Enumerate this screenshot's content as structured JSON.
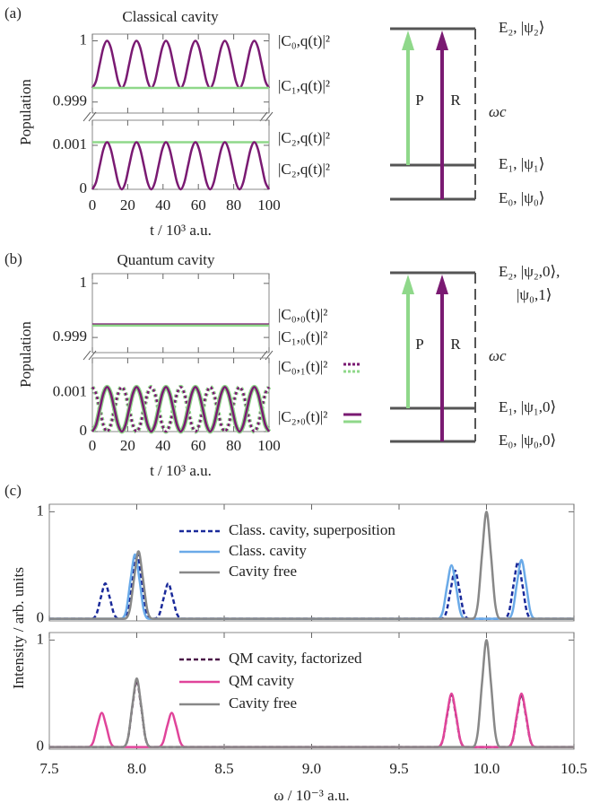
{
  "chart_data": [
    {
      "type": "line",
      "label": "(a)",
      "title": "Classical cavity",
      "x_label": "t / 10³ a.u.",
      "y_label": "Population",
      "x": [
        0,
        2.08,
        4.17,
        6.25,
        8.33,
        10.42,
        12.5,
        14.58,
        16.67,
        18.75,
        20.83,
        22.92,
        25,
        27.08,
        29.17,
        31.25,
        33.33,
        35.42,
        37.5,
        39.58,
        41.67,
        43.75,
        45.83,
        47.92,
        50,
        52.08,
        54.17,
        56.25,
        58.33,
        60.42,
        62.5,
        64.58,
        66.67,
        68.75,
        70.83,
        72.92,
        75,
        77.08,
        79.17,
        81.25,
        83.33,
        85.42,
        87.5,
        89.58,
        91.67,
        93.75,
        95.83,
        97.92,
        100
      ],
      "xlim": [
        0,
        100
      ],
      "xticks": [
        0,
        20,
        40,
        60,
        80,
        100
      ],
      "panels": [
        {
          "ylim": [
            0.99882,
            1.00011
          ],
          "yticks": [
            0.999,
            1
          ],
          "series": [
            {
              "name": "|C₀,q(t)|²",
              "color": "#7a1a72",
              "label_color": "#7a1a72",
              "values": [
                0.99923,
                0.99934,
                0.99962,
                0.99989,
                1,
                0.99989,
                0.99962,
                0.99934,
                0.99923,
                0.99934,
                0.99962,
                0.99989,
                1,
                0.99989,
                0.99962,
                0.99934,
                0.99923,
                0.99934,
                0.99962,
                0.99989,
                1,
                0.99989,
                0.99962,
                0.99934,
                0.99923,
                0.99934,
                0.99962,
                0.99989,
                1,
                0.99989,
                0.99962,
                0.99934,
                0.99923,
                0.99934,
                0.99962,
                0.99989,
                1,
                0.99989,
                0.99962,
                0.99934,
                0.99923,
                0.99934,
                0.99962,
                0.99989,
                1,
                0.99989,
                0.99962,
                0.99934,
                0.99923
              ]
            },
            {
              "name": "|C₁,q(t)|²",
              "color": "#8fd88a",
              "label_color": "#5e9e5a",
              "x": [
                0,
                100
              ],
              "values": [
                0.99923,
                0.99923
              ]
            }
          ]
        },
        {
          "ylim": [
            0,
            0.00157
          ],
          "yticks": [
            0,
            0.001
          ],
          "series": [
            {
              "name": "|C₂,q(t)|²",
              "color": "#8fd88a",
              "label_color": "#5e9e5a",
              "x": [
                0,
                100
              ],
              "values": [
                0.00107,
                0.00107
              ]
            },
            {
              "name": "|C₂,q(t)|²",
              "color": "#7a1a72",
              "label_color": "#7a1a72",
              "values": [
                0,
                0.00016,
                0.00054,
                0.00091,
                0.00107,
                0.00091,
                0.00054,
                0.00016,
                0,
                0.00016,
                0.00054,
                0.00091,
                0.00107,
                0.00091,
                0.00054,
                0.00016,
                0,
                0.00016,
                0.00054,
                0.00091,
                0.00107,
                0.00091,
                0.00054,
                0.00016,
                0,
                0.00016,
                0.00054,
                0.00091,
                0.00107,
                0.00091,
                0.00054,
                0.00016,
                0,
                0.00016,
                0.00054,
                0.00091,
                0.00107,
                0.00091,
                0.00054,
                0.00016,
                0,
                0.00016,
                0.00054,
                0.00091,
                0.00107,
                0.00091,
                0.00054,
                0.00016,
                0
              ]
            }
          ]
        }
      ]
    },
    {
      "type": "line",
      "label": "(b)",
      "title": "Quantum cavity",
      "x_label": "t / 10³ a.u.",
      "y_label": "Population",
      "x": [
        0,
        2.08,
        4.17,
        6.25,
        8.33,
        10.42,
        12.5,
        14.58,
        16.67,
        18.75,
        20.83,
        22.92,
        25,
        27.08,
        29.17,
        31.25,
        33.33,
        35.42,
        37.5,
        39.58,
        41.67,
        43.75,
        45.83,
        47.92,
        50,
        52.08,
        54.17,
        56.25,
        58.33,
        60.42,
        62.5,
        64.58,
        66.67,
        68.75,
        70.83,
        72.92,
        75,
        77.08,
        79.17,
        81.25,
        83.33,
        85.42,
        87.5,
        89.58,
        91.67,
        93.75,
        95.83,
        97.92,
        100
      ],
      "xlim": [
        0,
        100
      ],
      "xticks": [
        0,
        20,
        40,
        60,
        80,
        100
      ],
      "panels": [
        {
          "ylim": [
            0.99872,
            1.00018
          ],
          "yticks": [
            0.999,
            1
          ],
          "series": [
            {
              "name": "|C₀,₀(t)|²",
              "color": "#7a1a72",
              "label_color": "#7a1a72",
              "x": [
                0,
                100
              ],
              "values": [
                0.99924,
                0.99924
              ]
            },
            {
              "name": "|C₁,₀(t)|²",
              "color": "#8fd88a",
              "label_color": "#5e9e5a",
              "x": [
                0,
                100
              ],
              "values": [
                0.99922,
                0.99922
              ]
            }
          ]
        },
        {
          "ylim": [
            0,
            0.0019
          ],
          "yticks": [
            0,
            0.001
          ],
          "series": [
            {
              "name": "|C₀,₁(t)|²",
              "colors": [
                "#8fd88a",
                "#7a1a72"
              ],
              "dash": true,
              "values": [
                0.00115,
                0.00098,
                0.00058,
                0.00017,
                0,
                0.00017,
                0.00058,
                0.00098,
                0.00115,
                0.00098,
                0.00058,
                0.00017,
                0,
                0.00017,
                0.00058,
                0.00098,
                0.00115,
                0.00098,
                0.00058,
                0.00017,
                0,
                0.00017,
                0.00058,
                0.00098,
                0.00115,
                0.00098,
                0.00058,
                0.00017,
                0,
                0.00017,
                0.00058,
                0.00098,
                0.00115,
                0.00098,
                0.00058,
                0.00017,
                0,
                0.00017,
                0.00058,
                0.00098,
                0.00115,
                0.00098,
                0.00058,
                0.00017,
                0,
                0.00017,
                0.00058,
                0.00098,
                0.00115
              ]
            },
            {
              "name": "|C₂,₀(t)|²",
              "colors": [
                "#8fd88a",
                "#7a1a72"
              ],
              "dash": false,
              "values": [
                0,
                0.00017,
                0.00058,
                0.00098,
                0.00115,
                0.00098,
                0.00058,
                0.00017,
                0,
                0.00017,
                0.00058,
                0.00098,
                0.00115,
                0.00098,
                0.00058,
                0.00017,
                0,
                0.00017,
                0.00058,
                0.00098,
                0.00115,
                0.00098,
                0.00058,
                0.00017,
                0,
                0.00017,
                0.00058,
                0.00098,
                0.00115,
                0.00098,
                0.00058,
                0.00017,
                0,
                0.00017,
                0.00058,
                0.00098,
                0.00115,
                0.00098,
                0.00058,
                0.00017,
                0,
                0.00017,
                0.00058,
                0.00098,
                0.00115,
                0.00098,
                0.00058,
                0.00017,
                0
              ]
            }
          ]
        }
      ]
    },
    {
      "type": "line",
      "label": "(c)",
      "x_label": "ω / 10⁻³ a.u.",
      "y_label": "Intensity / arb. units",
      "xlim": [
        7.5,
        10.5
      ],
      "xticks": [
        7.5,
        {
          "value": 8,
          "label": "8.0"
        },
        8.5,
        {
          "value": 9,
          "label": "9.0"
        },
        9.5,
        {
          "value": 10,
          "label": "10.0"
        },
        10.5
      ],
      "panels": [
        {
          "ylim": [
            -0.02,
            1.07
          ],
          "yticks": [
            0,
            1
          ],
          "series": [
            {
              "name": "Class. cavity, superposition",
              "color": "#1a2a9a",
              "dash": true,
              "x": [
                7.5,
                7.74,
                7.77,
                7.795,
                7.82,
                7.845,
                7.87,
                7.9,
                7.92,
                7.95,
                7.975,
                8.0,
                8.025,
                8.05,
                8.08,
                8.1,
                8.13,
                8.155,
                8.18,
                8.205,
                8.23,
                8.26,
                9.74,
                9.77,
                9.795,
                9.82,
                9.845,
                9.87,
                9.9,
                10.1,
                10.13,
                10.155,
                10.18,
                10.205,
                10.23,
                10.26,
                10.5
              ],
              "values": [
                0,
                0,
                0.045,
                0.2,
                0.33,
                0.2,
                0.045,
                0,
                0,
                0.084,
                0.38,
                0.62,
                0.38,
                0.084,
                0,
                0,
                0.045,
                0.2,
                0.33,
                0.2,
                0.045,
                0,
                0,
                0.061,
                0.27,
                0.45,
                0.27,
                0.061,
                0,
                0,
                0.072,
                0.32,
                0.53,
                0.32,
                0.072,
                0,
                0
              ]
            },
            {
              "name": "Class. cavity",
              "color": "#6aaae8",
              "dash": false,
              "x": [
                7.5,
                7.91,
                7.94,
                7.965,
                7.99,
                8.015,
                8.04,
                8.07,
                9.72,
                9.75,
                9.775,
                9.8,
                9.825,
                9.85,
                9.88,
                10.12,
                10.15,
                10.175,
                10.2,
                10.225,
                10.25,
                10.28,
                10.5
              ],
              "values": [
                0,
                0,
                0.081,
                0.37,
                0.6,
                0.37,
                0.081,
                0,
                0,
                0.068,
                0.31,
                0.5,
                0.31,
                0.068,
                0,
                0,
                0.074,
                0.34,
                0.55,
                0.34,
                0.074,
                0,
                0
              ]
            },
            {
              "name": "Cavity free",
              "color": "#888888",
              "dash": false,
              "x": [
                7.5,
                7.93,
                7.96,
                7.985,
                8.01,
                8.035,
                8.06,
                8.09,
                9.92,
                9.95,
                9.975,
                10.0,
                10.025,
                10.05,
                10.08,
                10.5
              ],
              "values": [
                0,
                0,
                0.085,
                0.38,
                0.63,
                0.38,
                0.085,
                0,
                0,
                0.135,
                0.61,
                1,
                0.61,
                0.135,
                0,
                0
              ]
            }
          ]
        },
        {
          "ylim": [
            -0.02,
            1.07
          ],
          "yticks": [
            0,
            1
          ],
          "series": [
            {
              "name": "QM cavity, factorized",
              "color": "#4a1848",
              "dash": true,
              "x": [
                7.5,
                7.92,
                7.95,
                7.975,
                8.0,
                8.025,
                8.05,
                8.08,
                9.72,
                9.75,
                9.775,
                9.8,
                9.825,
                9.85,
                9.88,
                10.12,
                10.15,
                10.175,
                10.2,
                10.225,
                10.25,
                10.28,
                10.5
              ],
              "values": [
                0,
                0,
                0.084,
                0.38,
                0.62,
                0.38,
                0.084,
                0,
                0,
                0.066,
                0.3,
                0.49,
                0.3,
                0.066,
                0,
                0,
                0.066,
                0.3,
                0.49,
                0.3,
                0.066,
                0,
                0
              ]
            },
            {
              "name": "QM cavity",
              "color": "#e0449a",
              "dash": false,
              "x": [
                7.5,
                7.72,
                7.75,
                7.775,
                7.8,
                7.825,
                7.85,
                7.88,
                8.12,
                8.15,
                8.175,
                8.2,
                8.225,
                8.25,
                8.28,
                9.72,
                9.75,
                9.775,
                9.8,
                9.825,
                9.85,
                9.88,
                10.12,
                10.15,
                10.175,
                10.2,
                10.225,
                10.25,
                10.28,
                10.5
              ],
              "values": [
                0,
                0,
                0.043,
                0.2,
                0.32,
                0.2,
                0.043,
                0,
                0,
                0.043,
                0.2,
                0.32,
                0.2,
                0.043,
                0,
                0,
                0.068,
                0.31,
                0.5,
                0.31,
                0.068,
                0,
                0,
                0.068,
                0.31,
                0.5,
                0.31,
                0.068,
                0,
                0
              ]
            },
            {
              "name": "Cavity free",
              "color": "#888888",
              "dash": false,
              "x": [
                7.5,
                7.92,
                7.95,
                7.975,
                8.0,
                8.025,
                8.05,
                8.08,
                9.92,
                9.95,
                9.975,
                10.0,
                10.025,
                10.05,
                10.08,
                10.5
              ],
              "values": [
                0,
                0,
                0.086,
                0.39,
                0.64,
                0.39,
                0.086,
                0,
                0,
                0.135,
                0.61,
                1,
                0.61,
                0.135,
                0,
                0
              ]
            }
          ]
        }
      ]
    }
  ],
  "diagrams": [
    {
      "levels": [
        "E₂, |ψ₂⟩",
        "E₁, |ψ₁⟩",
        "E₀, |ψ₀⟩"
      ],
      "pump": "P",
      "probe": "R",
      "cavity": "ωc"
    },
    {
      "levels": [
        "E₂, |ψ₂,0⟩,",
        "E₁, |ψ₁,0⟩",
        "E₀, |ψ₀,0⟩"
      ],
      "continuation": "|ψ₀,1⟩",
      "pump": "P",
      "probe": "R",
      "cavity": "ωc"
    }
  ]
}
